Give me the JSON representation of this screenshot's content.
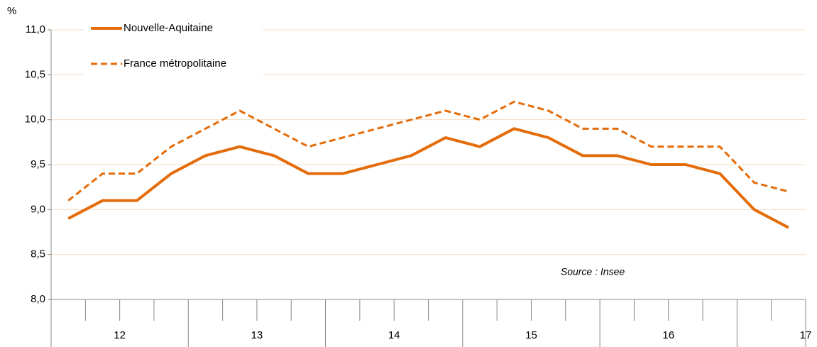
{
  "chart_data": {
    "type": "line",
    "y_unit": "%",
    "annotation": "Source : Insee",
    "year_labels": [
      "12",
      "13",
      "14",
      "15",
      "16",
      "17"
    ],
    "series": [
      {
        "name": "Nouvelle-Aquitaine",
        "color": "#e46c0a",
        "dash": false,
        "values": [
          8.9,
          9.1,
          9.1,
          9.4,
          9.6,
          9.7,
          9.6,
          9.4,
          9.4,
          9.5,
          9.6,
          9.8,
          9.7,
          9.9,
          9.8,
          9.6,
          9.6,
          9.5,
          9.5,
          9.4,
          9.0,
          8.8
        ]
      },
      {
        "name": "France métropolitaine",
        "color": "#e46c0a",
        "dash": true,
        "values": [
          9.1,
          9.4,
          9.4,
          9.7,
          9.9,
          10.1,
          9.9,
          9.7,
          9.8,
          9.9,
          10.0,
          10.1,
          10.0,
          10.2,
          10.1,
          9.9,
          9.9,
          9.7,
          9.7,
          9.7,
          9.3,
          9.2
        ]
      }
    ],
    "ylim": [
      8.0,
      11.0
    ],
    "yticks": [
      {
        "value": 8.0,
        "label": "8,0"
      },
      {
        "value": 8.5,
        "label": "8,5"
      },
      {
        "value": 9.0,
        "label": "9,0"
      },
      {
        "value": 9.5,
        "label": "9,5"
      },
      {
        "value": 10.0,
        "label": "10,0"
      },
      {
        "value": 10.5,
        "label": "10,5"
      },
      {
        "value": 11.0,
        "label": "11,0"
      }
    ],
    "grid": true
  }
}
